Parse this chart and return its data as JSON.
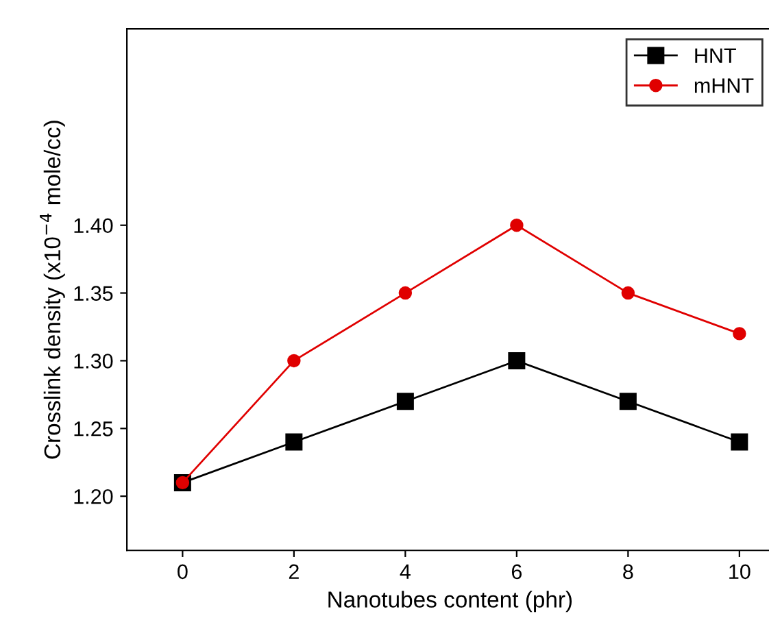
{
  "chart_data": {
    "type": "line",
    "xlabel": "Nanotubes content (phr)",
    "ylabel": "Crosslink density (x10$^{−4}$ mole/cc)",
    "x": [
      0,
      2,
      4,
      6,
      8,
      10
    ],
    "series": [
      {
        "name": "HNT",
        "color": "#000000",
        "marker": "square",
        "values": [
          1.21,
          1.24,
          1.27,
          1.3,
          1.27,
          1.24
        ]
      },
      {
        "name": "mHNT",
        "color": "#e00000",
        "marker": "circle",
        "values": [
          1.21,
          1.3,
          1.35,
          1.4,
          1.35,
          1.32
        ]
      }
    ],
    "xlim": [
      -1,
      10.6
    ],
    "xticks": [
      0,
      2,
      4,
      6,
      8,
      10
    ],
    "ylim": [
      1.16,
      1.545
    ],
    "yticks": [
      {
        "value": 1.2,
        "label": "1.20"
      },
      {
        "value": 1.25,
        "label": "1.25"
      },
      {
        "value": 1.3,
        "label": "1.30"
      },
      {
        "value": 1.35,
        "label": "1.35"
      },
      {
        "value": 1.4,
        "label": "1.40"
      }
    ],
    "grid": false,
    "legend": "top right",
    "line_style": "solid"
  }
}
